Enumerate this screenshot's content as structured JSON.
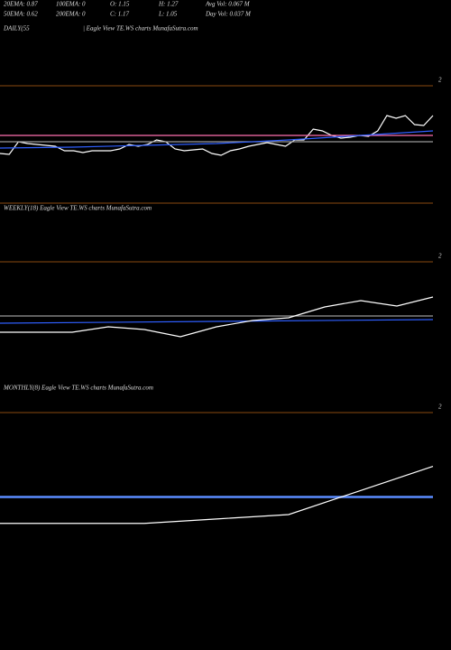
{
  "header": {
    "rows": [
      [
        "20EMA: 0.87",
        "100EMA: 0",
        "O: 1.15",
        "H: 1.27",
        "Avg Vol: 0.067 M"
      ],
      [
        "50EMA: 0.62",
        "200EMA: 0",
        "C: 1.17",
        "L: 1.05",
        "Day Vol: 0.037 M"
      ]
    ]
  },
  "chart_data": [
    {
      "type": "line",
      "title": "DAILY(55",
      "subtitle": "| Eagle  View  TE.WS charts MunafaSutra.com",
      "ylim": [
        -0.6,
        2
      ],
      "yticks": [
        2
      ],
      "series": [
        {
          "color": "#ffffff",
          "values": [
            0.5,
            0.48,
            0.76,
            0.72,
            0.7,
            0.68,
            0.66,
            0.56,
            0.56,
            0.52,
            0.56,
            0.56,
            0.56,
            0.6,
            0.7,
            0.66,
            0.7,
            0.8,
            0.76,
            0.6,
            0.56,
            0.58,
            0.6,
            0.5,
            0.46,
            0.56,
            0.6,
            0.66,
            0.7,
            0.74,
            0.7,
            0.66,
            0.8,
            0.8,
            1.04,
            1.0,
            0.9,
            0.84,
            0.86,
            0.9,
            0.88,
            1.0,
            1.34,
            1.28,
            1.34,
            1.14,
            1.12,
            1.34
          ]
        },
        {
          "color": "#ff6fb0",
          "values": [
            0.9,
            0.9
          ]
        },
        {
          "color": "#9a9a9a",
          "values": [
            0.76,
            0.76
          ]
        },
        {
          "color": "#2f5fff",
          "values": [
            0.62,
            0.64,
            0.68,
            0.72,
            0.8,
            0.9,
            1.0
          ]
        }
      ]
    },
    {
      "type": "line",
      "title": "WEEKLY(18) Eagle  View  TE.WS charts MunafaSutra.com",
      "ylim": [
        -0.6,
        2
      ],
      "yticks": [
        2
      ],
      "series": [
        {
          "color": "#9a9a9a",
          "values": [
            0.8,
            0.8
          ]
        },
        {
          "color": "#2f5fff",
          "values": [
            0.64,
            0.68,
            0.72
          ]
        },
        {
          "color": "#ffffff",
          "values": [
            0.44,
            0.44,
            0.44,
            0.56,
            0.5,
            0.34,
            0.56,
            0.7,
            0.76,
            1.0,
            1.14,
            1.02,
            1.22
          ]
        }
      ]
    },
    {
      "type": "line",
      "title": "MONTHLY(8) Eagle  View  TE.WS charts MunafaSutra.com",
      "ylim": [
        0,
        2
      ],
      "yticks": [
        2
      ],
      "series": [
        {
          "color": "#5b8cff",
          "values": [
            1.23,
            1.23
          ]
        },
        {
          "color": "#ffffff",
          "values": [
            0.99,
            0.99,
            0.99,
            1.03,
            1.07,
            1.29,
            1.51
          ]
        }
      ]
    }
  ]
}
